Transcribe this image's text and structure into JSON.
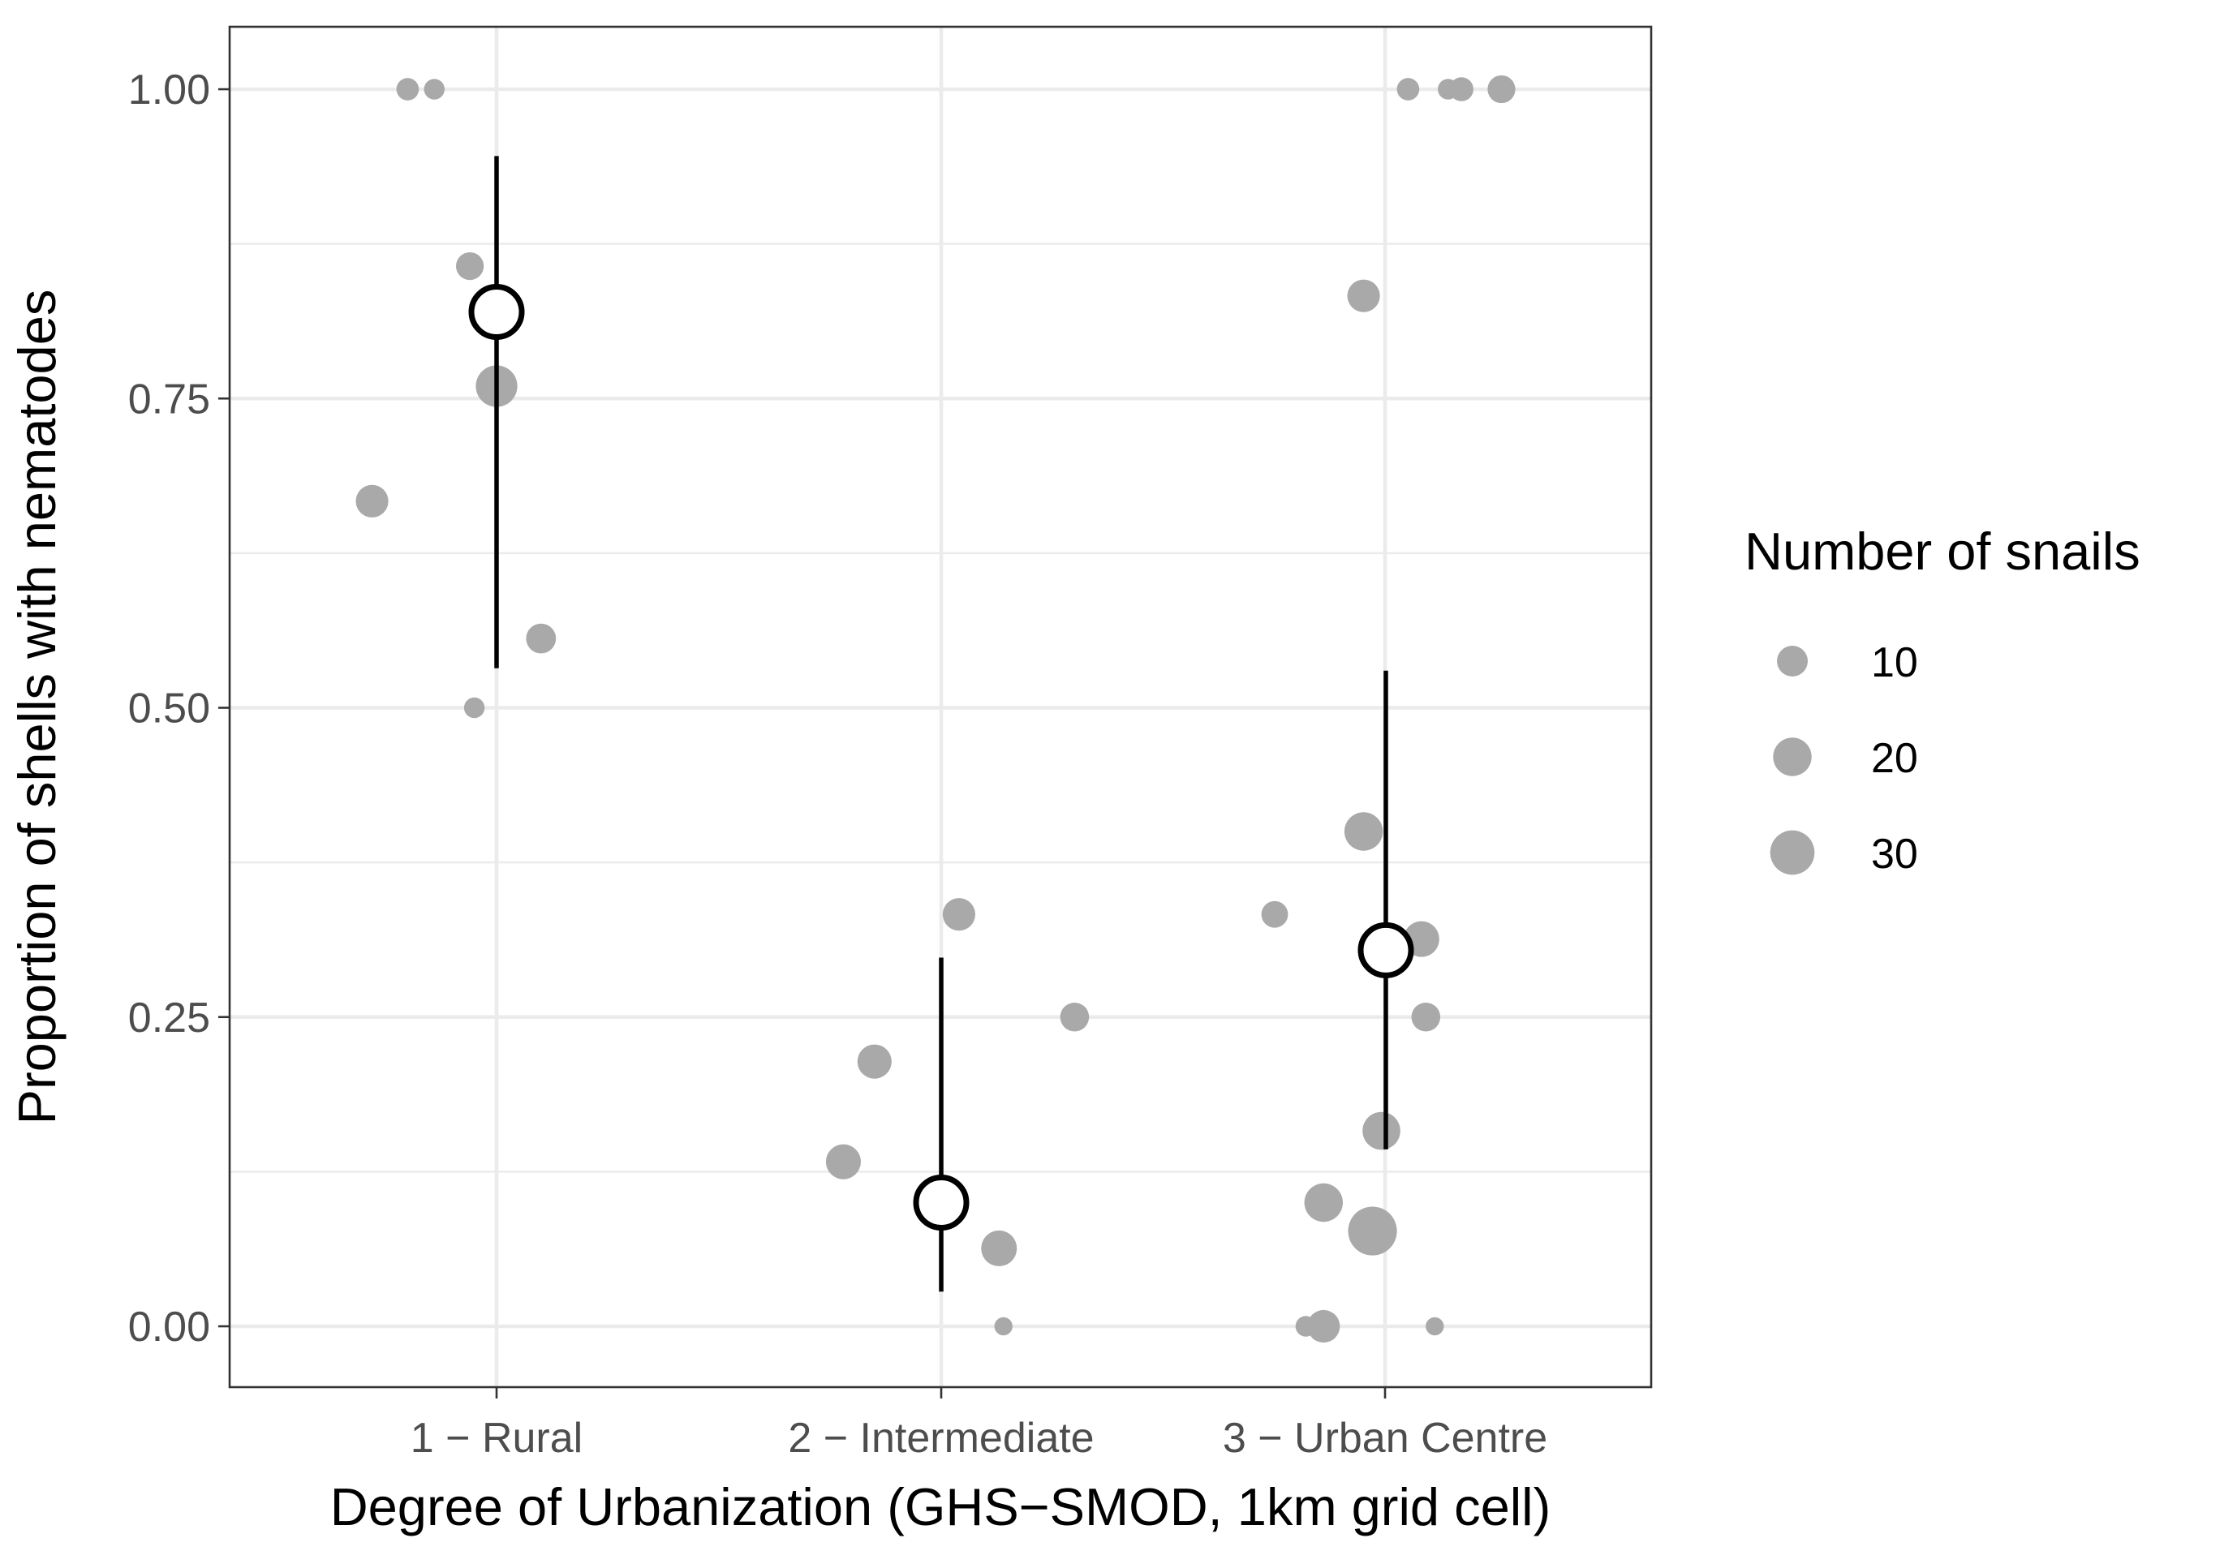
{
  "chart_data": {
    "type": "scatter",
    "xlabel": "Degree of Urbanization (GHS−SMOD, 1km grid cell)",
    "ylabel": "Proportion of shells with nematodes",
    "categories": [
      "1 − Rural",
      "2 − Intermediate",
      "3 − Urban Centre"
    ],
    "ylim": [
      -0.05,
      1.05
    ],
    "yticks": [
      0.0,
      0.25,
      0.5,
      0.75,
      1.0
    ],
    "ytick_labels": [
      "0.00",
      "0.25",
      "0.50",
      "0.75",
      "1.00"
    ],
    "grid": true,
    "legend": {
      "title": "Number of snails",
      "position": "right",
      "entries": [
        {
          "label": "10",
          "value": 10
        },
        {
          "label": "20",
          "value": 20
        },
        {
          "label": "30",
          "value": 30
        }
      ]
    },
    "point_color": "#a9a9a9",
    "estimate_color": "#000000",
    "points": [
      {
        "x": 0.8,
        "y": 1.0,
        "n": 3
      },
      {
        "x": 0.86,
        "y": 1.0,
        "n": 2
      },
      {
        "x": 0.94,
        "y": 0.857,
        "n": 7
      },
      {
        "x": 1.0,
        "y": 0.76,
        "n": 25
      },
      {
        "x": 0.72,
        "y": 0.667,
        "n": 12
      },
      {
        "x": 1.1,
        "y": 0.556,
        "n": 9
      },
      {
        "x": 0.95,
        "y": 0.5,
        "n": 2
      },
      {
        "x": 2.04,
        "y": 0.333,
        "n": 12
      },
      {
        "x": 2.3,
        "y": 0.25,
        "n": 8
      },
      {
        "x": 1.85,
        "y": 0.214,
        "n": 14
      },
      {
        "x": 1.78,
        "y": 0.133,
        "n": 15
      },
      {
        "x": 2.13,
        "y": 0.063,
        "n": 16
      },
      {
        "x": 2.14,
        "y": 0.0,
        "n": 1
      },
      {
        "x": 3.05,
        "y": 1.0,
        "n": 3
      },
      {
        "x": 3.14,
        "y": 1.0,
        "n": 2
      },
      {
        "x": 3.17,
        "y": 1.0,
        "n": 4
      },
      {
        "x": 3.26,
        "y": 1.0,
        "n": 7
      },
      {
        "x": 2.95,
        "y": 0.833,
        "n": 12
      },
      {
        "x": 2.95,
        "y": 0.4,
        "n": 20
      },
      {
        "x": 2.75,
        "y": 0.333,
        "n": 6
      },
      {
        "x": 3.08,
        "y": 0.313,
        "n": 16
      },
      {
        "x": 3.09,
        "y": 0.25,
        "n": 8
      },
      {
        "x": 2.99,
        "y": 0.158,
        "n": 19
      },
      {
        "x": 2.86,
        "y": 0.1,
        "n": 20
      },
      {
        "x": 2.97,
        "y": 0.077,
        "n": 39
      },
      {
        "x": 2.82,
        "y": 0.0,
        "n": 2
      },
      {
        "x": 2.86,
        "y": 0.0,
        "n": 12
      },
      {
        "x": 3.11,
        "y": 0.0,
        "n": 1
      }
    ],
    "estimates": [
      {
        "x": 1,
        "y": 0.82,
        "lower": 0.532,
        "upper": 0.946
      },
      {
        "x": 2,
        "y": 0.1,
        "lower": 0.028,
        "upper": 0.298
      },
      {
        "x": 3,
        "y": 0.304,
        "lower": 0.143,
        "upper": 0.53
      }
    ]
  }
}
